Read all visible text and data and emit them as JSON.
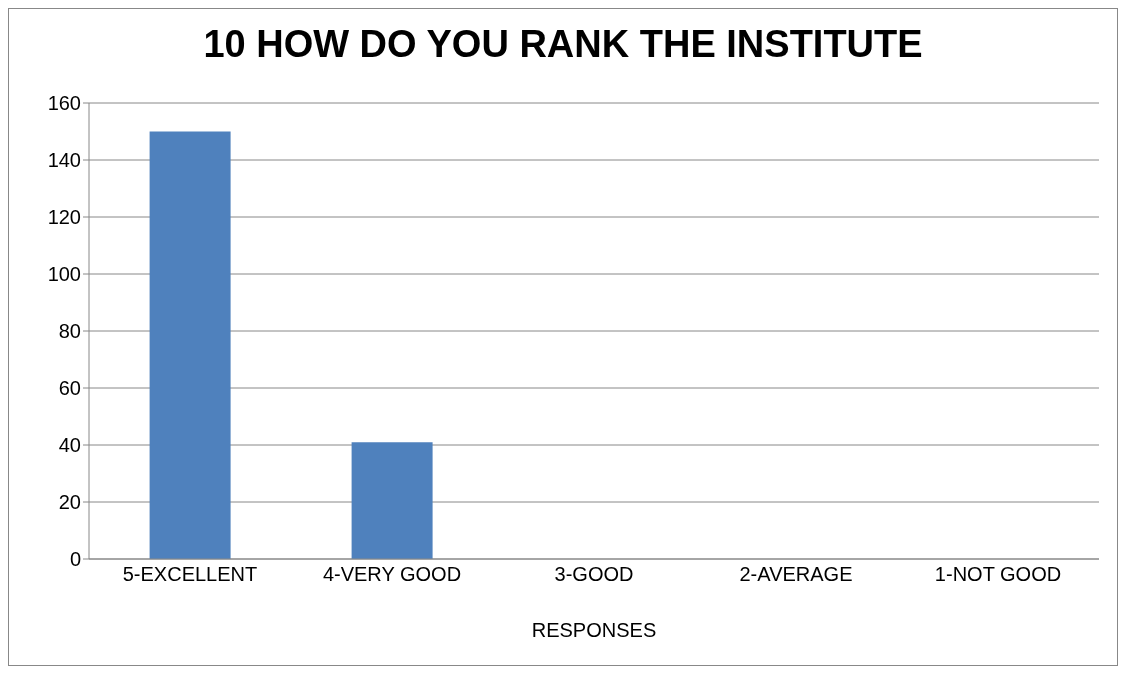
{
  "chart_data": {
    "type": "bar",
    "title": "10 HOW DO YOU RANK THE INSTITUTE",
    "xlabel": "RESPONSES",
    "categories": [
      "5-EXCELLENT",
      "4-VERY GOOD",
      "3-GOOD",
      "2-AVERAGE",
      "1-NOT GOOD"
    ],
    "values": [
      150,
      41,
      0,
      0,
      0
    ],
    "color": "#4f81bd",
    "ylim": [
      0,
      160
    ],
    "yticks": [
      0,
      20,
      40,
      60,
      80,
      100,
      120,
      140,
      160
    ],
    "grid": "y"
  }
}
